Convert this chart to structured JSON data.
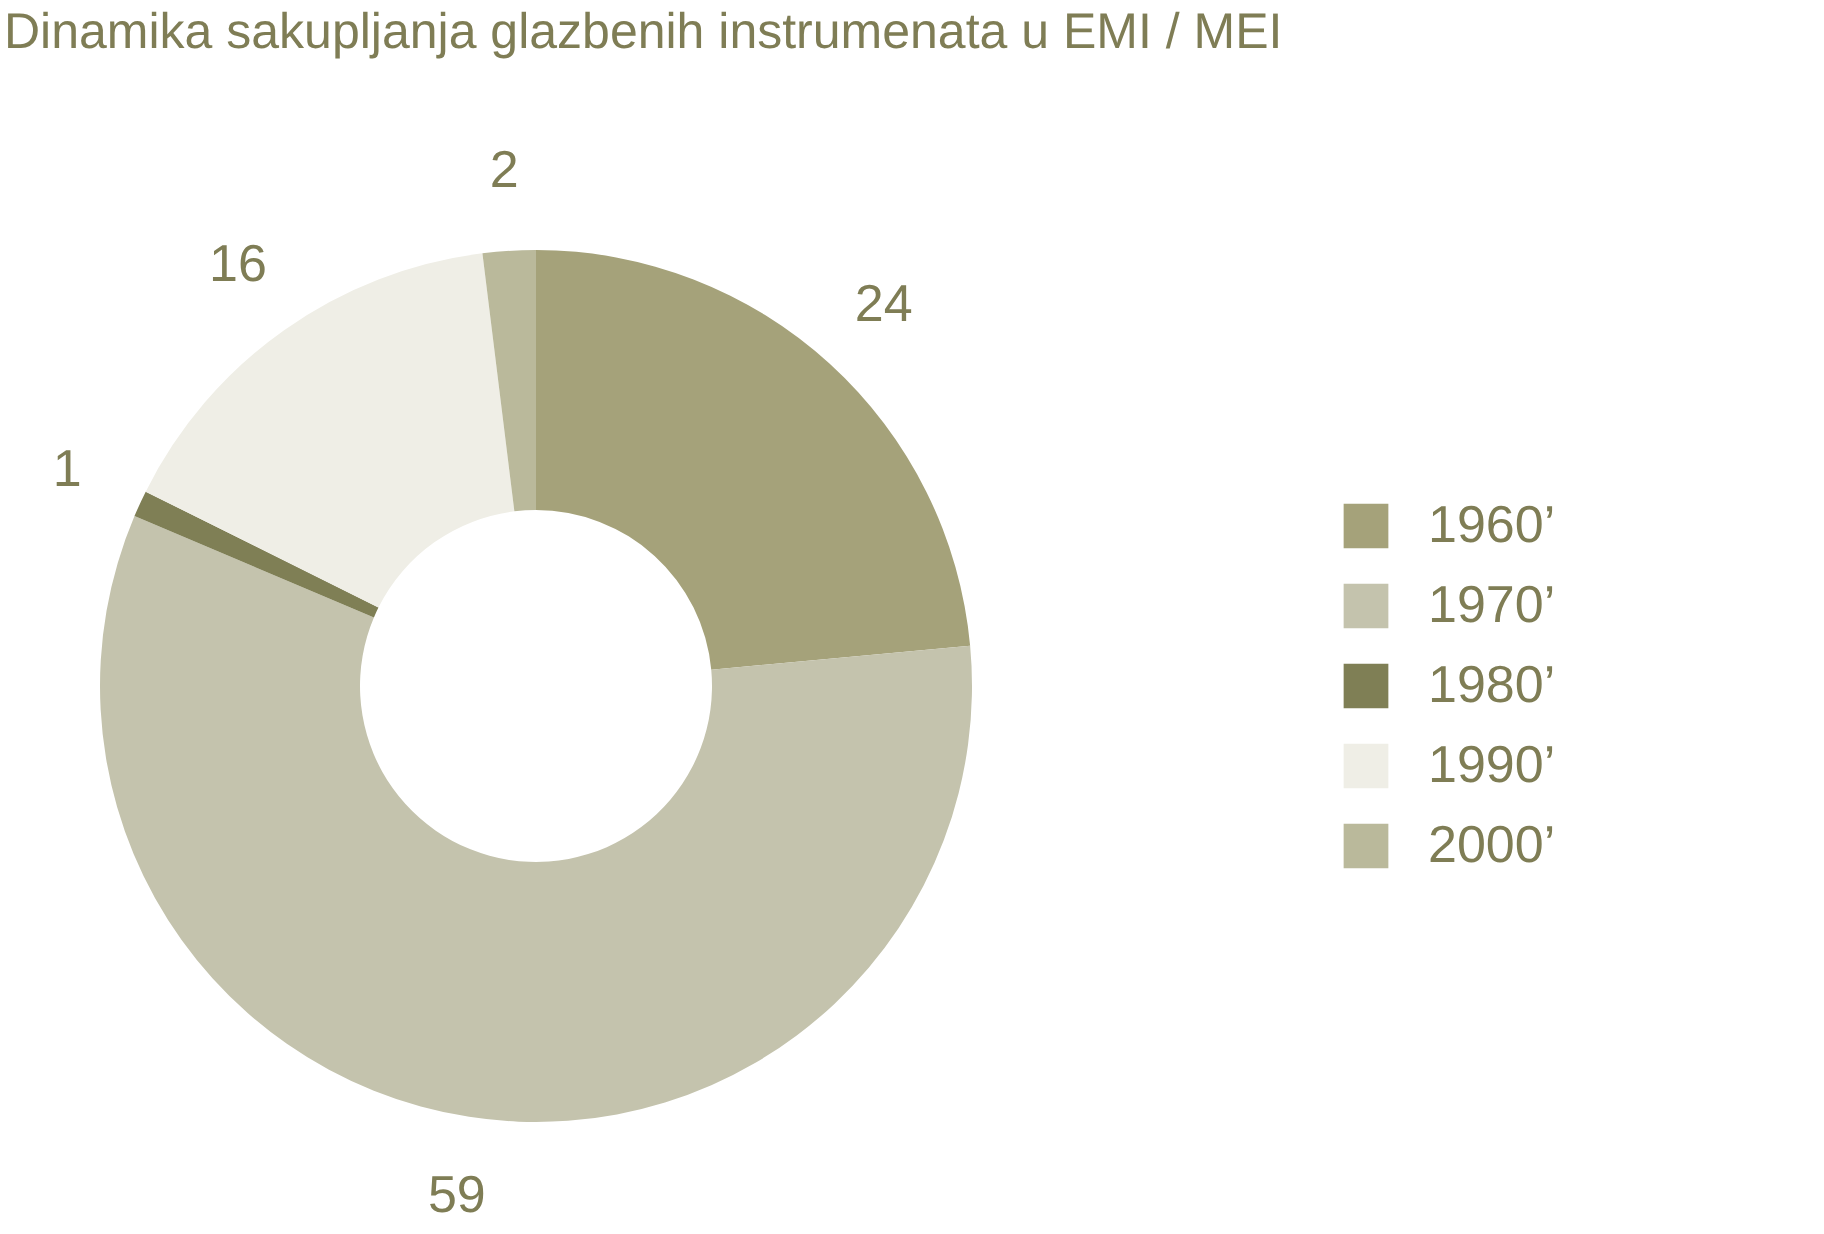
{
  "chart_data": {
    "type": "donut",
    "title": "Dinamika sakupljanja glazbenih instrumenata u EMI / MEI",
    "categories": [
      "1960’",
      "1970’",
      "1980’",
      "1990’",
      "2000’"
    ],
    "values": [
      24,
      59,
      1,
      16,
      2
    ],
    "colors": [
      "#a5a27a",
      "#c4c3ad",
      "#7f7f55",
      "#efeee6",
      "#bab99b"
    ],
    "data_labels": true,
    "legend": "right"
  }
}
